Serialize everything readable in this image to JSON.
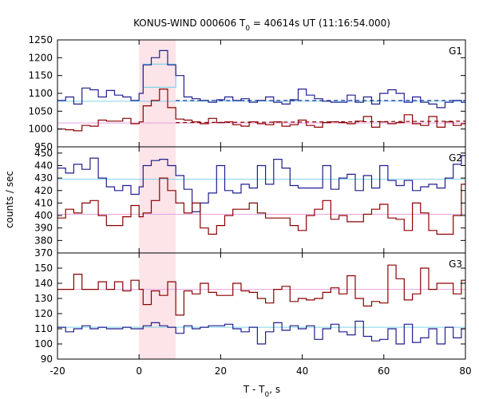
{
  "chart_data": {
    "type": "line",
    "title_main": "KONUS-WIND 000606 T",
    "title_sub": "0",
    "title_rest": " = 40614s UT (11:16:54.000)",
    "xlabel_main": "T - T",
    "xlabel_sub": "0",
    "xlabel_rest": ", s",
    "ylabel": "counts / sec",
    "xlim": [
      -20,
      80
    ],
    "xticks": [
      "-20",
      "0",
      "20",
      "40",
      "60",
      "80"
    ],
    "xtick_values": [
      -20,
      0,
      20,
      40,
      60,
      80
    ],
    "highlight_interval": [
      0,
      9
    ],
    "bin_edges": [
      -20,
      -18,
      -16,
      -14,
      -12,
      -10,
      -8,
      -6,
      -4,
      -2,
      0,
      1,
      3,
      5,
      7,
      9,
      11,
      13,
      15,
      17,
      19,
      21,
      23,
      25,
      27,
      29,
      31,
      33,
      35,
      37,
      39,
      41,
      43,
      45,
      47,
      49,
      51,
      53,
      55,
      57,
      59,
      61,
      63,
      65,
      67,
      69,
      71,
      73,
      75,
      77,
      79,
      80
    ],
    "colors": {
      "blue": "#1f1f8f",
      "red": "#8b0000",
      "cyan": "#7fd3e8",
      "pink": "#e8a3e0",
      "band": "#fce4e8"
    },
    "panels": [
      {
        "name": "G1",
        "ylim": [
          950,
          1250
        ],
        "yticks": [
          "950",
          "1000",
          "1050",
          "1100",
          "1150",
          "1200",
          "1250"
        ],
        "ytick_values": [
          950,
          1000,
          1050,
          1100,
          1150,
          1200,
          1250
        ],
        "series": [
          {
            "color": "blue",
            "values": [
              1080,
              1090,
              1070,
              1115,
              1110,
              1090,
              1108,
              1095,
              1090,
              1080,
              1100,
              1180,
              1200,
              1220,
              1180,
              1150,
              1090,
              1085,
              1080,
              1075,
              1082,
              1090,
              1080,
              1085,
              1075,
              1080,
              1090,
              1075,
              1070,
              1082,
              1112,
              1095,
              1085,
              1078,
              1075,
              1075,
              1095,
              1075,
              1090,
              1070,
              1100,
              1110,
              1100,
              1075,
              1090,
              1075,
              1070,
              1060,
              1075,
              1080,
              1075
            ]
          },
          {
            "color": "red",
            "values": [
              1000,
              998,
              995,
              1010,
              1008,
              1025,
              1022,
              1022,
              1030,
              1015,
              1020,
              1065,
              1080,
              1112,
              1060,
              1028,
              1025,
              1020,
              1015,
              1030,
              1018,
              1020,
              1012,
              1008,
              1020,
              1015,
              1012,
              1020,
              1008,
              1012,
              1025,
              1010,
              1005,
              1018,
              1020,
              1018,
              1015,
              1022,
              1035,
              1005,
              1020,
              1015,
              1018,
              1040,
              1015,
              1010,
              1035,
              1005,
              1020,
              1010,
              1015
            ]
          }
        ],
        "refs": [
          {
            "color": "cyan",
            "style": "solid",
            "value": 1078
          },
          {
            "color": "pink",
            "style": "solid",
            "value": 1017
          }
        ],
        "fits": [
          {
            "color": "blue",
            "from": 9,
            "to": 80,
            "start": 1080,
            "end": 1080
          },
          {
            "color": "red",
            "from": 9,
            "to": 80,
            "start": 1018,
            "end": 1022
          }
        ],
        "source_box": {
          "color": "cyan",
          "from": 1,
          "to": 9,
          "low": 1117,
          "high": 1182
        }
      },
      {
        "name": "G2",
        "ylim": [
          370,
          455
        ],
        "yticks": [
          "370",
          "380",
          "390",
          "400",
          "410",
          "420",
          "430",
          "440",
          "450"
        ],
        "ytick_values": [
          370,
          380,
          390,
          400,
          410,
          420,
          430,
          440,
          450
        ],
        "series": [
          {
            "color": "blue",
            "values": [
              438,
              434,
              441,
              437,
              446,
              430,
              423,
              420,
              424,
              417,
              423,
              440,
              444,
              445,
              440,
              432,
              421,
              403,
              410,
              418,
              440,
              420,
              418,
              425,
              422,
              440,
              425,
              445,
              438,
              424,
              422,
              422,
              422,
              440,
              421,
              430,
              433,
              420,
              432,
              422,
              440,
              428,
              424,
              428,
              420,
              423,
              425,
              422,
              430,
              441,
              448
            ]
          },
          {
            "color": "red",
            "values": [
              398,
              405,
              402,
              410,
              412,
              400,
              392,
              392,
              399,
              408,
              399,
              402,
              412,
              430,
              420,
              410,
              402,
              410,
              390,
              385,
              392,
              400,
              405,
              405,
              410,
              402,
              398,
              398,
              398,
              392,
              388,
              400,
              405,
              412,
              397,
              400,
              395,
              395,
              401,
              405,
              409,
              398,
              397,
              388,
              410,
              402,
              388,
              385,
              385,
              400,
              425
            ]
          }
        ],
        "refs": [
          {
            "color": "cyan",
            "style": "solid",
            "value": 429
          },
          {
            "color": "pink",
            "style": "solid",
            "value": 401
          }
        ],
        "fits": [],
        "source_box": null
      },
      {
        "name": "G3",
        "ylim": [
          90,
          160
        ],
        "yticks": [
          "90",
          "100",
          "110",
          "120",
          "130",
          "140",
          "150"
        ],
        "ytick_values": [
          90,
          100,
          110,
          120,
          130,
          140,
          150
        ],
        "series": [
          {
            "color": "blue",
            "values": [
              111,
              108,
              110,
              112,
              110,
              111,
              110,
              110,
              111,
              110,
              110,
              112,
              114,
              112,
              111,
              107,
              112,
              110,
              111,
              112,
              112,
              113,
              110,
              108,
              111,
              100,
              108,
              114,
              109,
              112,
              110,
              112,
              103,
              110,
              113,
              108,
              106,
              115,
              105,
              102,
              103,
              110,
              100,
              113,
              101,
              104,
              110,
              100,
              111,
              104,
              110
            ]
          },
          {
            "color": "red",
            "values": [
              136,
              136,
              146,
              136,
              136,
              141,
              136,
              141,
              135,
              142,
              136,
              126,
              135,
              132,
              141,
              119,
              135,
              133,
              140,
              134,
              132,
              132,
              140,
              135,
              134,
              130,
              127,
              136,
              138,
              128,
              130,
              129,
              130,
              134,
              137,
              133,
              145,
              130,
              125,
              128,
              127,
              152,
              143,
              129,
              133,
              150,
              136,
              140,
              140,
              133,
              142
            ]
          }
        ],
        "refs": [
          {
            "color": "cyan",
            "style": "solid",
            "value": 111
          },
          {
            "color": "pink",
            "style": "solid",
            "value": 136
          }
        ],
        "fits": [],
        "source_box": null
      }
    ]
  }
}
